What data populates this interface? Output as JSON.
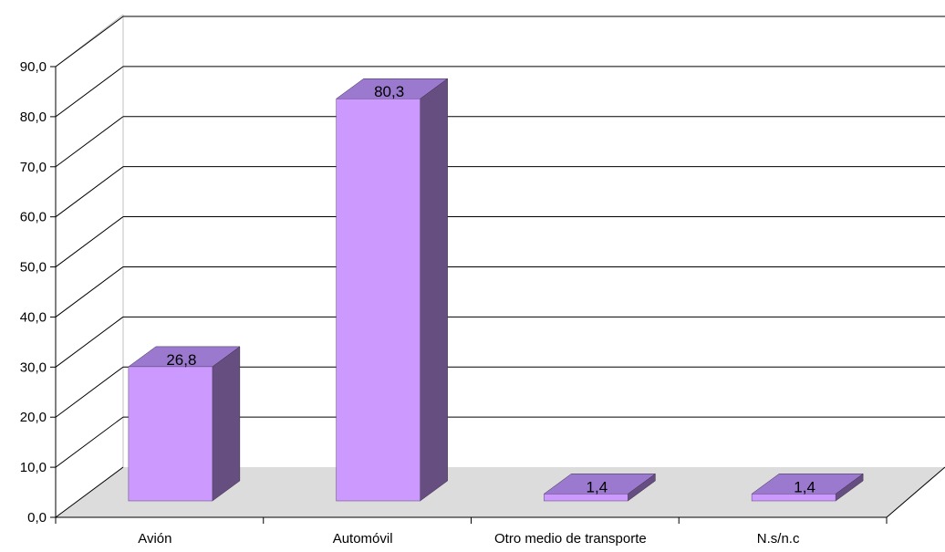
{
  "chart_data": {
    "type": "bar",
    "categories": [
      "Avión",
      "Automóvil",
      "Otro medio de transporte",
      "N.s/n.c"
    ],
    "values": [
      26.8,
      80.3,
      1.4,
      1.4
    ],
    "value_labels": [
      "26,8",
      "80,3",
      "1,4",
      "1,4"
    ],
    "ylim": [
      0,
      90
    ],
    "yticks": [
      0,
      10,
      20,
      30,
      40,
      50,
      60,
      70,
      80,
      90
    ],
    "ytick_labels": [
      "0,0",
      "10,0",
      "20,0",
      "30,0",
      "40,0",
      "50,0",
      "60,0",
      "70,0",
      "80,0",
      "90,0"
    ],
    "title": "",
    "xlabel": "",
    "ylabel": "",
    "grid": true,
    "style": "3d-column",
    "colors": {
      "bar_front": "#cc99ff",
      "bar_top": "#9b79cf",
      "bar_side": "#664e80",
      "floor": "#dcdcdc",
      "grid": "#000000",
      "wall_edge": "#c0c0c0"
    }
  }
}
